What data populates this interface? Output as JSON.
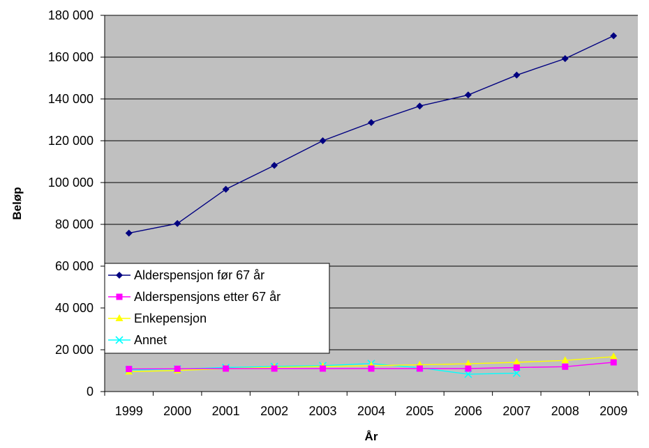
{
  "chart_data": {
    "type": "line",
    "title": "",
    "xlabel": "År",
    "ylabel": "Beløp",
    "ylim": [
      0,
      180000
    ],
    "y_ticks": [
      "0",
      "20 000",
      "40 000",
      "60 000",
      "80 000",
      "100 000",
      "120 000",
      "140 000",
      "160 000",
      "180 000"
    ],
    "y_tick_values": [
      0,
      20000,
      40000,
      60000,
      80000,
      100000,
      120000,
      140000,
      160000,
      180000
    ],
    "categories": [
      "1999",
      "2000",
      "2001",
      "2002",
      "2003",
      "2004",
      "2005",
      "2006",
      "2007",
      "2008",
      "2009"
    ],
    "grid": true,
    "plot_background": "#C0C0C0",
    "legend_position": "left, lower-middle",
    "series": [
      {
        "name": "Alderspensjon før 67 år",
        "color": "#000080",
        "marker": "diamond",
        "values": [
          75800,
          80400,
          96800,
          108200,
          120000,
          128700,
          136600,
          141900,
          151400,
          159300,
          170200
        ]
      },
      {
        "name": "Alderspensjons etter 67 år",
        "color": "#FF00FF",
        "marker": "square",
        "values": [
          10800,
          10900,
          11000,
          11000,
          11000,
          11000,
          11000,
          11000,
          11500,
          11900,
          14000
        ]
      },
      {
        "name": "Enkepensjon",
        "color": "#FFFF00",
        "marker": "triangle",
        "values": [
          9500,
          10100,
          11000,
          11600,
          12000,
          12400,
          12800,
          13300,
          14000,
          14900,
          16700
        ]
      },
      {
        "name": "Annet",
        "color": "#00FFFF",
        "marker": "x",
        "values": [
          10300,
          10800,
          11500,
          12000,
          12400,
          13400,
          11400,
          8300,
          8800,
          null,
          null
        ]
      }
    ]
  }
}
